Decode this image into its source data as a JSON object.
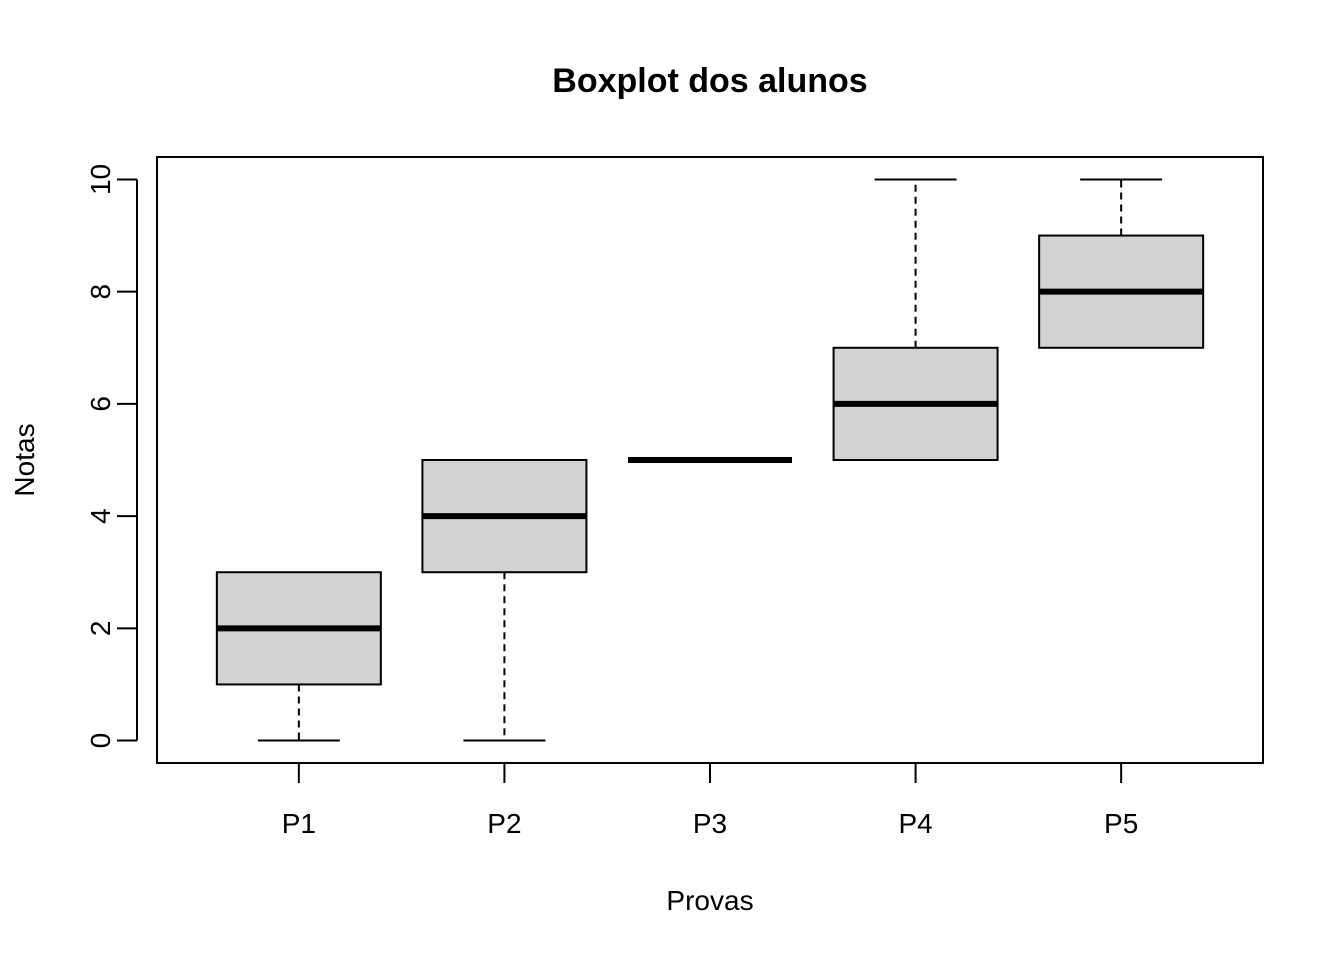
{
  "chart_data": {
    "type": "boxplot",
    "title": "Boxplot dos alunos",
    "xlabel": "Provas",
    "ylabel": "Notas",
    "categories": [
      "P1",
      "P2",
      "P3",
      "P4",
      "P5"
    ],
    "boxes": [
      {
        "name": "P1",
        "min": 0,
        "q1": 1,
        "median": 2,
        "q3": 3,
        "max": 3
      },
      {
        "name": "P2",
        "min": 0,
        "q1": 3,
        "median": 4,
        "q3": 5,
        "max": 5
      },
      {
        "name": "P3",
        "min": 5,
        "q1": 5,
        "median": 5,
        "q3": 5,
        "max": 5
      },
      {
        "name": "P4",
        "min": 5,
        "q1": 5,
        "median": 6,
        "q3": 7,
        "max": 10
      },
      {
        "name": "P5",
        "min": 7,
        "q1": 7,
        "median": 8,
        "q3": 9,
        "max": 10
      }
    ],
    "ylim": [
      -0.4,
      10.4
    ],
    "yticks": [
      0,
      2,
      4,
      6,
      8,
      10
    ],
    "colors": {
      "box_fill": "#d3d3d3",
      "stroke": "#000000"
    },
    "grid": false,
    "legend": "none"
  }
}
